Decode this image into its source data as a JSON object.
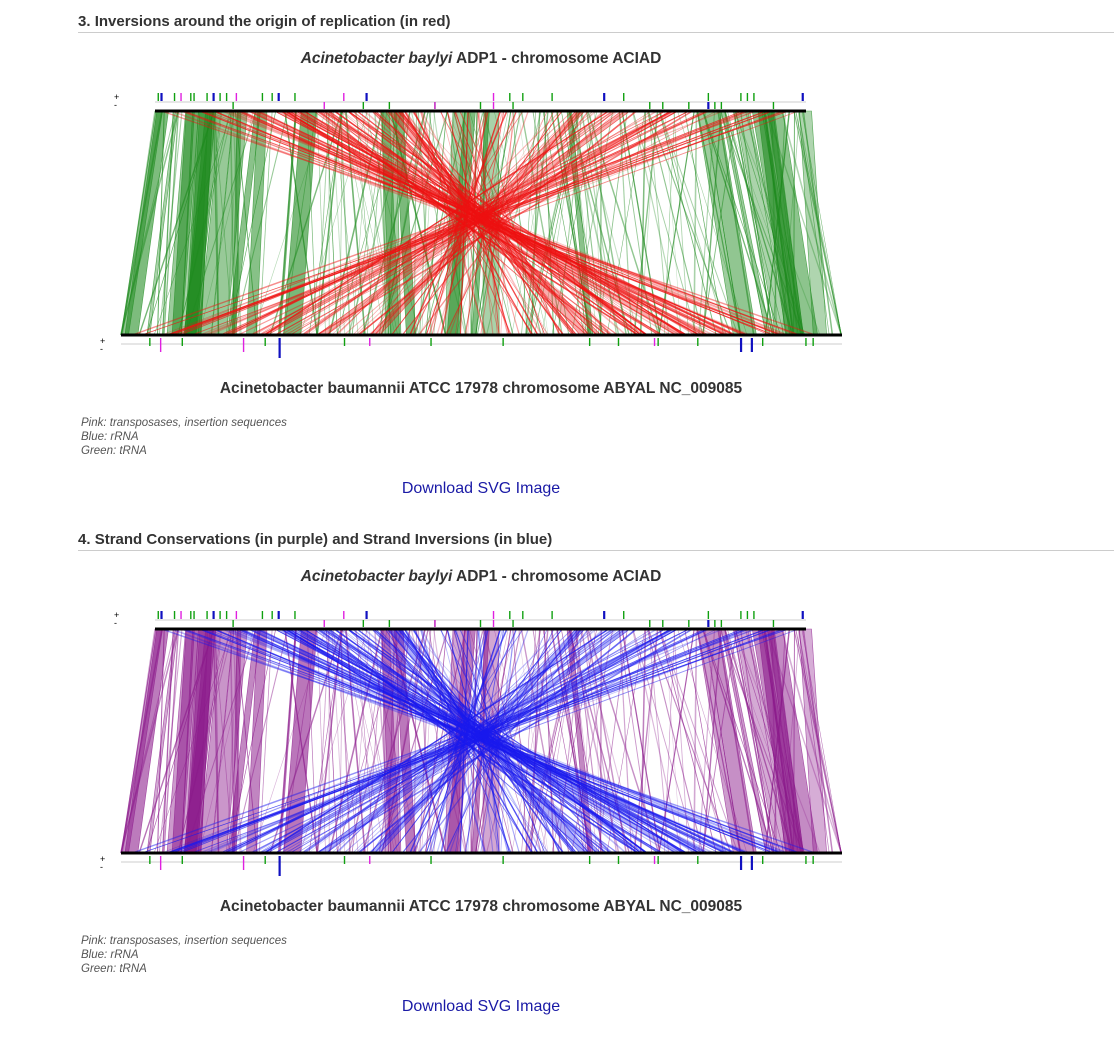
{
  "sections": [
    {
      "number": "3.",
      "title": "Inversions around the origin of replication (in red)",
      "genome_top": {
        "species": "Acinetobacter baylyi",
        "rest": " ADP1 - chromosome ACIAD"
      },
      "genome_bottom": "Acinetobacter baumannii ATCC 17978 chromosome ABYAL NC_009085",
      "legend": [
        "Pink: transposases, insertion sequences",
        "Blue: rRNA",
        "Green: tRNA"
      ],
      "download_label": "Download SVG Image",
      "colors": {
        "conserved": "#1e8a1e",
        "inverted": "#ee1111"
      }
    },
    {
      "number": "4.",
      "title": "Strand Conservations (in purple) and Strand Inversions (in blue)",
      "genome_top": {
        "species": "Acinetobacter baylyi",
        "rest": " ADP1 - chromosome ACIAD"
      },
      "genome_bottom": "Acinetobacter baumannii ATCC 17978 chromosome ABYAL NC_009085",
      "legend": [
        "Pink: transposases, insertion sequences",
        "Blue: rRNA",
        "Green: tRNA"
      ],
      "download_label": "Download SVG Image",
      "colors": {
        "conserved": "#8b1a8b",
        "inverted": "#1a1aee"
      }
    }
  ],
  "strand_labels": {
    "plus": "+",
    "minus": "-"
  },
  "feature_colors": {
    "transposase": "#e020e0",
    "rrna": "#1010c0",
    "trna": "#10a010"
  }
}
